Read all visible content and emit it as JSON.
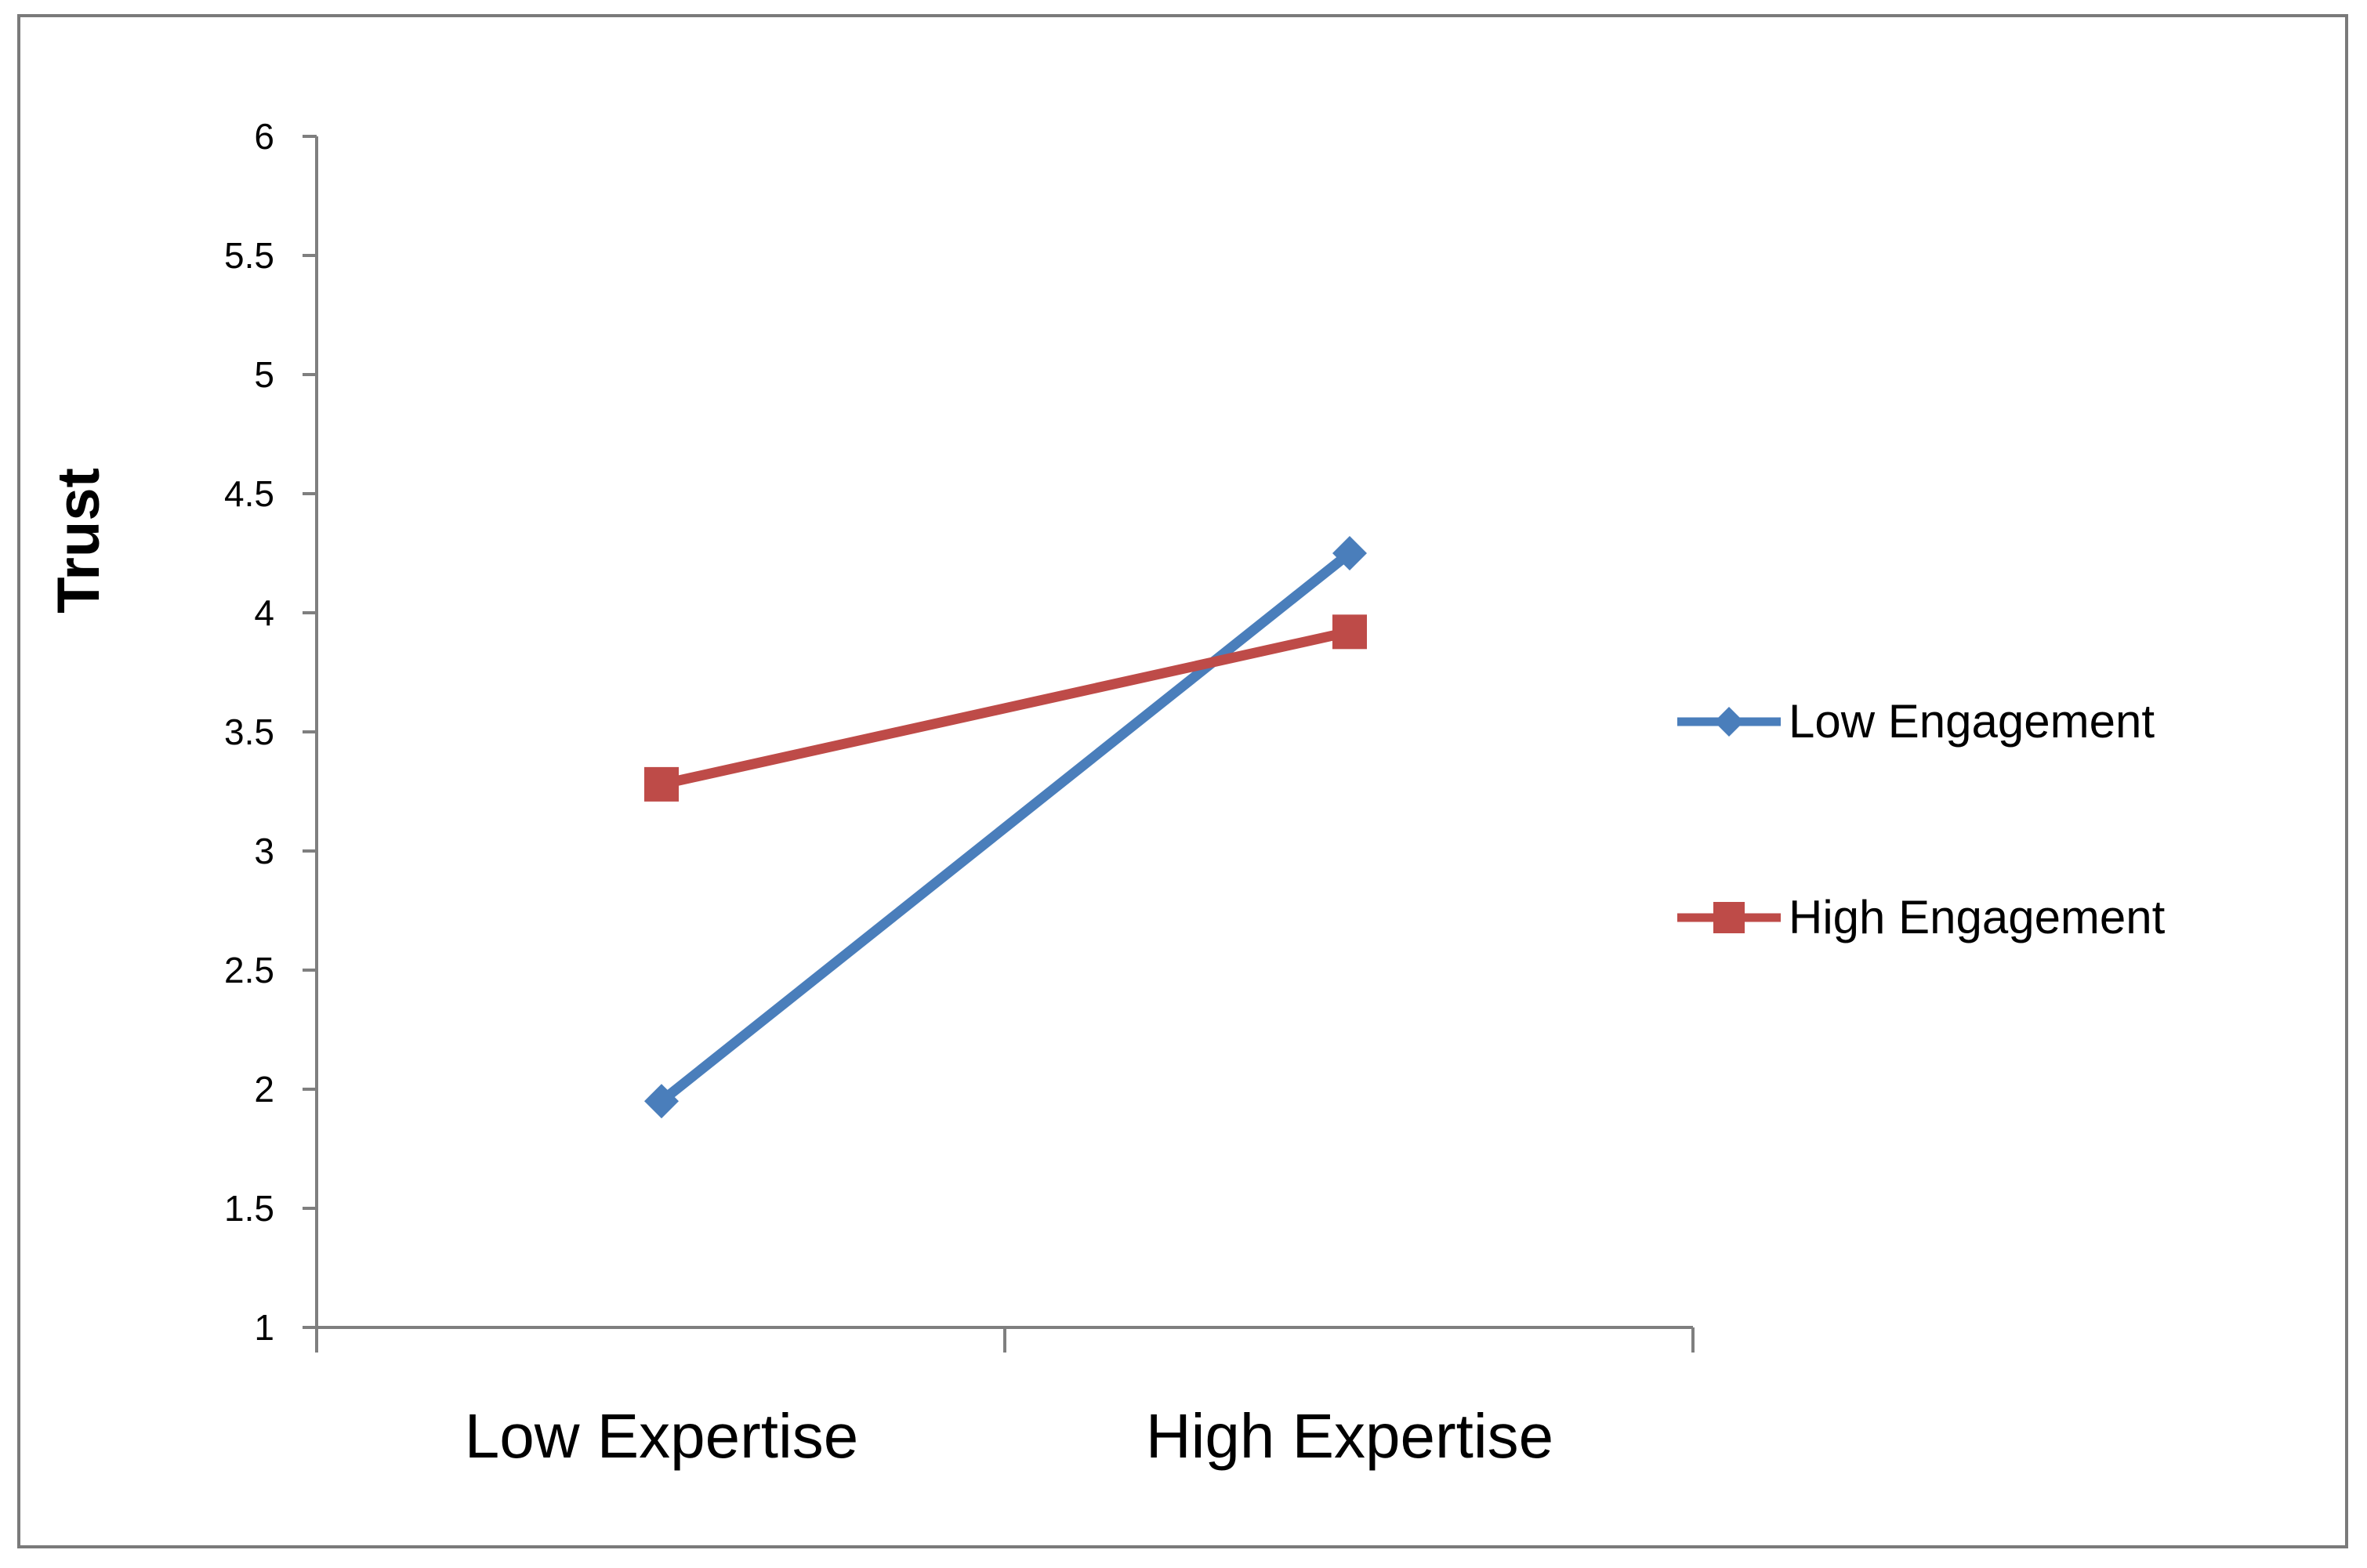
{
  "chart_data": {
    "type": "line",
    "title": "",
    "xlabel": "",
    "ylabel": "Trust",
    "categories": [
      "Low Expertise",
      "High Expertise"
    ],
    "ylim": [
      1,
      6
    ],
    "yticks": [
      "1",
      "1.5",
      "2",
      "2.5",
      "3",
      "3.5",
      "4",
      "4.5",
      "5",
      "5.5",
      "6"
    ],
    "grid": false,
    "legend_position": "right",
    "series": [
      {
        "name": "Low Engagement",
        "values": [
          1.95,
          4.25
        ],
        "color": "#4a7ebb",
        "marker": "diamond"
      },
      {
        "name": "High Engagement",
        "values": [
          3.28,
          3.92
        ],
        "color": "#be4b48",
        "marker": "square"
      }
    ]
  }
}
